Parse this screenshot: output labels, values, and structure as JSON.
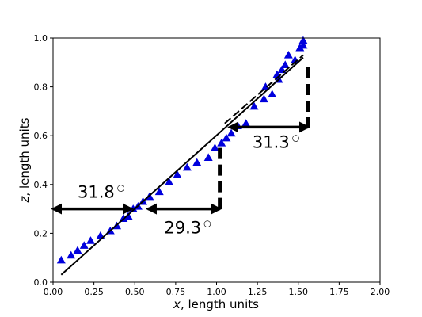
{
  "chart_data": {
    "type": "scatter",
    "title": "",
    "xlabel_var": "x",
    "xlabel_rest": ", length units",
    "ylabel_var": "z",
    "ylabel_rest": ", length units",
    "xlim": [
      0.0,
      2.0
    ],
    "ylim": [
      0.0,
      1.0
    ],
    "xticks": [
      0.0,
      0.25,
      0.5,
      0.75,
      1.0,
      1.25,
      1.5,
      1.75,
      2.0
    ],
    "yticks": [
      0.0,
      0.2,
      0.4,
      0.6,
      0.8,
      1.0
    ],
    "xtick_labels": [
      "0.00",
      "0.25",
      "0.50",
      "0.75",
      "1.00",
      "1.25",
      "1.50",
      "1.75",
      "2.00"
    ],
    "ytick_labels": [
      "0.0",
      "0.2",
      "0.4",
      "0.6",
      "0.8",
      "1.0"
    ],
    "grid": false,
    "marker_color": "#0000dd",
    "series": [
      {
        "marker": "triangle",
        "x": [
          0.05,
          0.11,
          0.15,
          0.19,
          0.23,
          0.29,
          0.35,
          0.39,
          0.43,
          0.46,
          0.49,
          0.52,
          0.55,
          0.59,
          0.65,
          0.71,
          0.76,
          0.82,
          0.88,
          0.95,
          0.99,
          1.03,
          1.06,
          1.09,
          1.13,
          1.18,
          1.23,
          1.29,
          1.3,
          1.34,
          1.37,
          1.38,
          1.4,
          1.42,
          1.44,
          1.48,
          1.51,
          1.53,
          1.53
        ],
        "y": [
          0.09,
          0.11,
          0.13,
          0.15,
          0.17,
          0.19,
          0.21,
          0.23,
          0.26,
          0.27,
          0.3,
          0.31,
          0.33,
          0.35,
          0.37,
          0.41,
          0.44,
          0.47,
          0.49,
          0.51,
          0.55,
          0.57,
          0.59,
          0.61,
          0.64,
          0.65,
          0.72,
          0.75,
          0.8,
          0.77,
          0.85,
          0.83,
          0.87,
          0.89,
          0.93,
          0.91,
          0.96,
          0.97,
          0.99
        ]
      }
    ],
    "fit_lines": [
      {
        "x": [
          0.05,
          1.53
        ],
        "y": [
          0.03,
          0.92
        ]
      },
      {
        "x": [
          1.05,
          1.53
        ],
        "y": [
          0.65,
          0.93
        ],
        "dashed": true
      }
    ],
    "vertical_dashes": [
      {
        "x": 1.02,
        "y": [
          0.3,
          0.57
        ]
      },
      {
        "x": 1.56,
        "y": [
          0.63,
          0.9
        ]
      }
    ],
    "arrows": [
      {
        "x": [
          0.0,
          0.48
        ],
        "y": 0.3
      },
      {
        "x": 0.58,
        "x_end": 1.02,
        "y": 0.3
      },
      {
        "x": 1.08,
        "x_end": 1.56,
        "y": 0.635
      }
    ],
    "annotations": [
      {
        "text": "31.8",
        "sup": "○",
        "x": 0.15,
        "y": 0.345
      },
      {
        "text": "29.3",
        "sup": "○",
        "x": 0.68,
        "y": 0.2
      },
      {
        "text": "31.3",
        "sup": "○",
        "x": 1.22,
        "y": 0.55
      }
    ]
  }
}
